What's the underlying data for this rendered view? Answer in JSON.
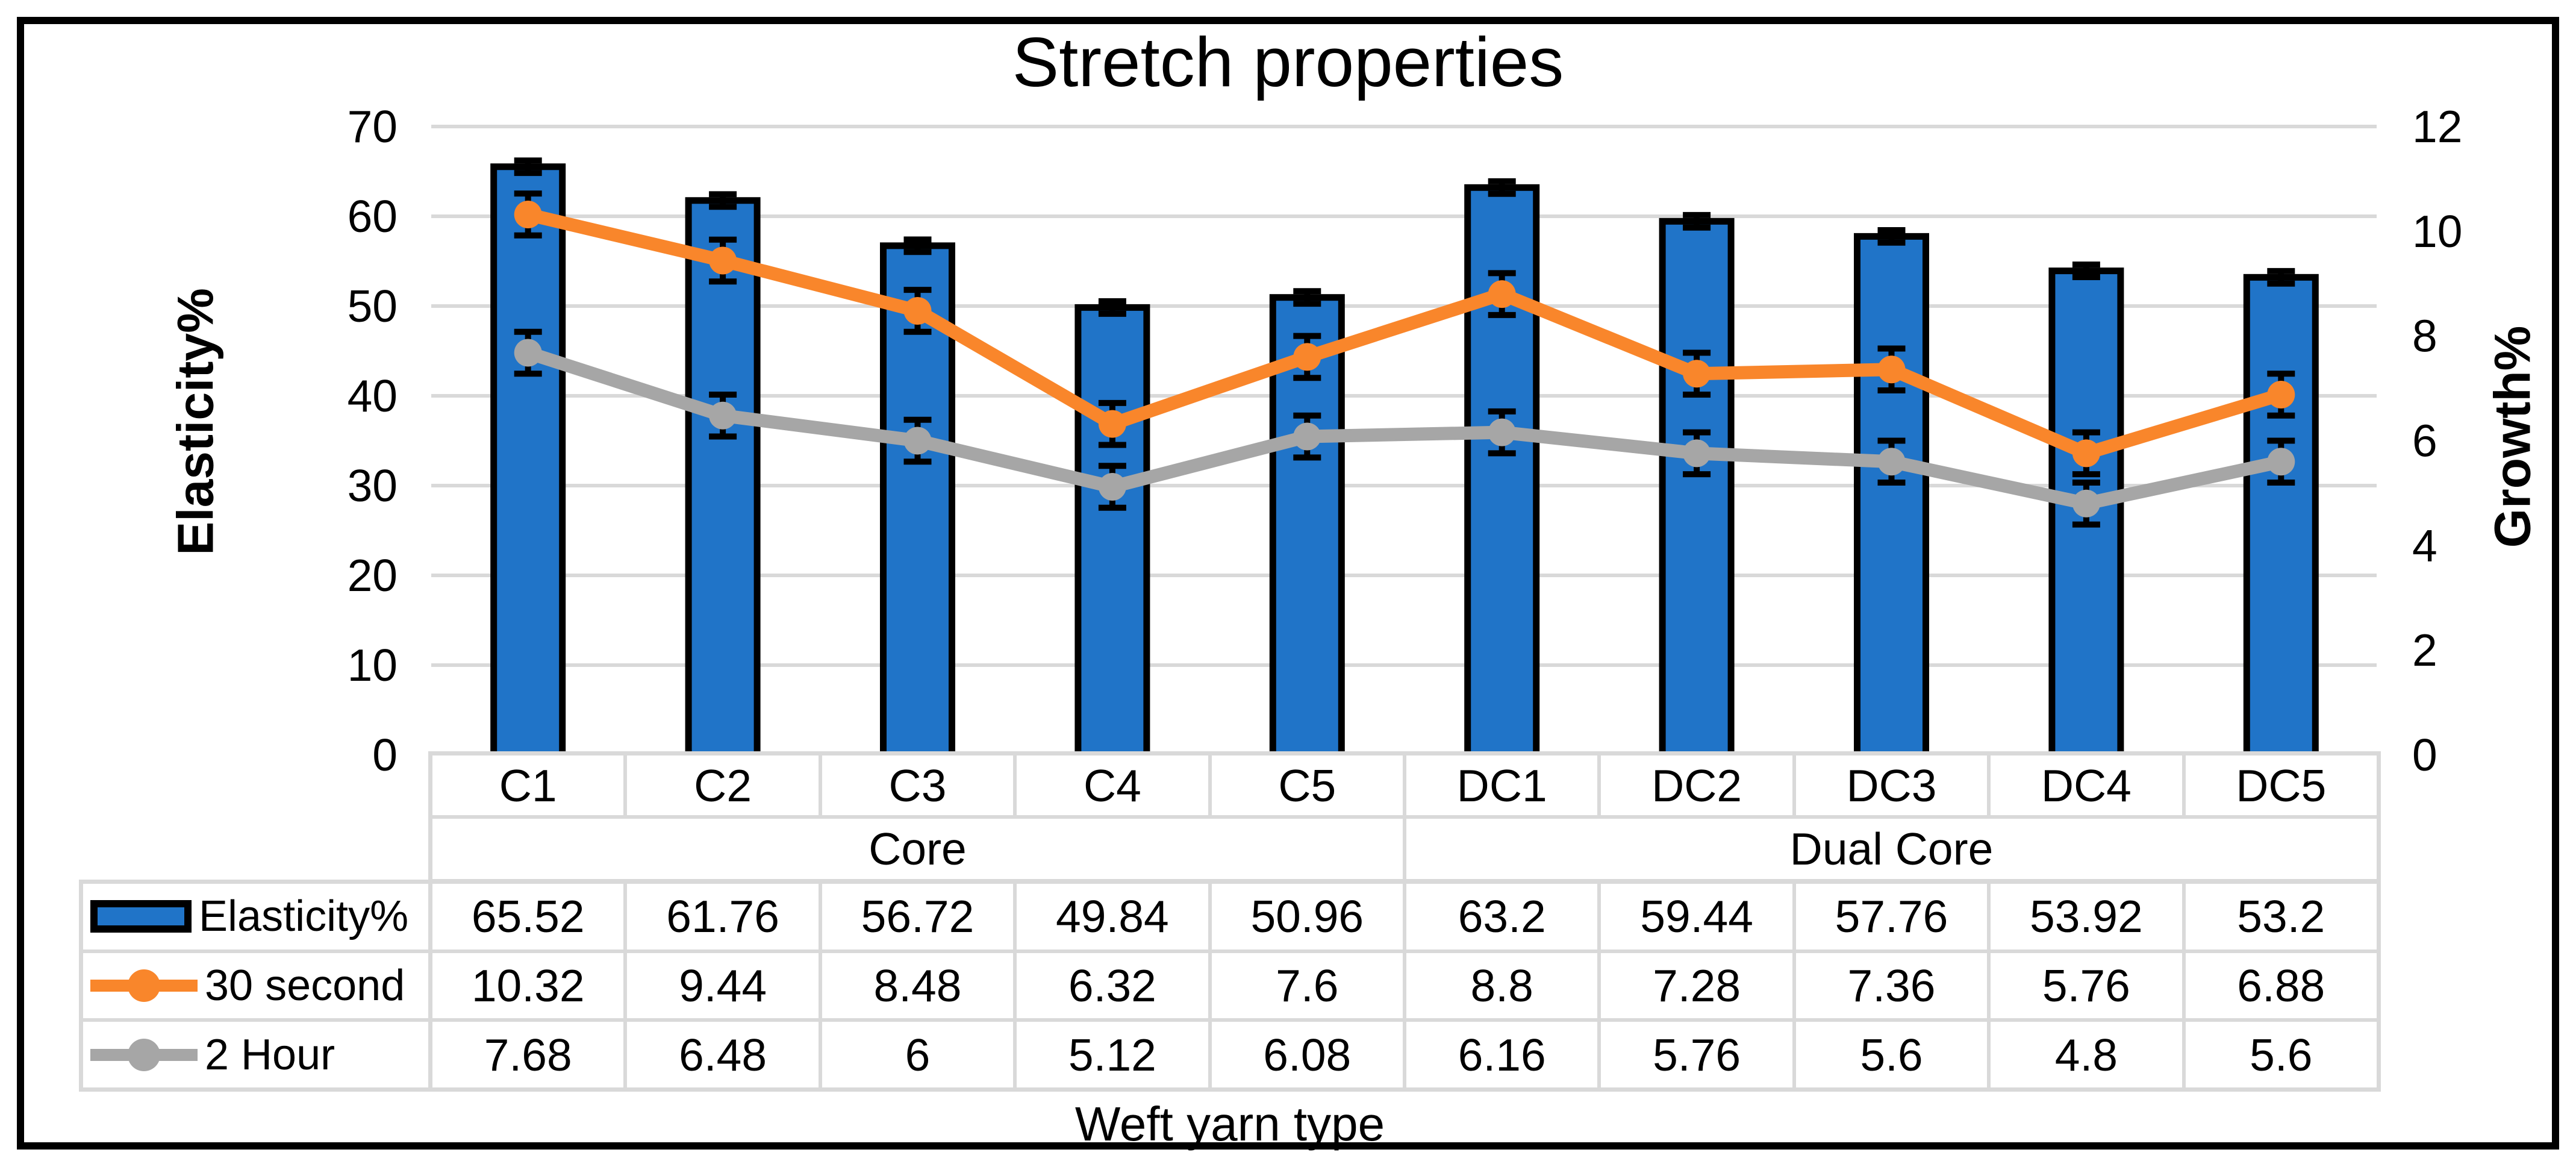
{
  "chart_data": {
    "type": "bar+line combo",
    "title": "Stretch properties",
    "xlabel": "Weft yarn type",
    "ylabel_left": "Elasticity%",
    "ylabel_right": "Growth%",
    "categories": [
      "C1",
      "C2",
      "C3",
      "C4",
      "C5",
      "DC1",
      "DC2",
      "DC3",
      "DC4",
      "DC5"
    ],
    "groups": [
      {
        "label": "Core",
        "span": 5
      },
      {
        "label": "Dual Core",
        "span": 5
      }
    ],
    "left_axis": {
      "min": 0,
      "max": 70,
      "ticks": [
        0,
        10,
        20,
        30,
        40,
        50,
        60,
        70
      ]
    },
    "right_axis": {
      "min": 0,
      "max": 12,
      "ticks": [
        0,
        2,
        4,
        6,
        8,
        10,
        12
      ]
    },
    "grid": true,
    "legend_position": "table-left",
    "series": [
      {
        "name": "Elasticity%",
        "type": "bar",
        "axis": "left",
        "color": "#2074C8",
        "error_bar": 0.7,
        "values": [
          65.52,
          61.76,
          56.72,
          49.84,
          50.96,
          63.2,
          59.44,
          57.76,
          53.92,
          53.2
        ]
      },
      {
        "name": "30 second",
        "type": "line",
        "axis": "right",
        "color": "#F9862B",
        "error_bar": 0.4,
        "values": [
          10.32,
          9.44,
          8.48,
          6.32,
          7.6,
          8.8,
          7.28,
          7.36,
          5.76,
          6.88
        ]
      },
      {
        "name": "2 Hour",
        "type": "line",
        "axis": "right",
        "color": "#A6A6A6",
        "error_bar": 0.4,
        "values": [
          7.68,
          6.48,
          6,
          5.12,
          6.08,
          6.16,
          5.76,
          5.6,
          4.8,
          5.6
        ]
      }
    ],
    "colors": {
      "gridline": "#D9D9D9",
      "table_border": "#D9D9D9",
      "error_bar": "#000000",
      "bar_border": "#000000",
      "figure_border": "#000000",
      "background": "#FFFFFF",
      "text": "#000000"
    }
  }
}
